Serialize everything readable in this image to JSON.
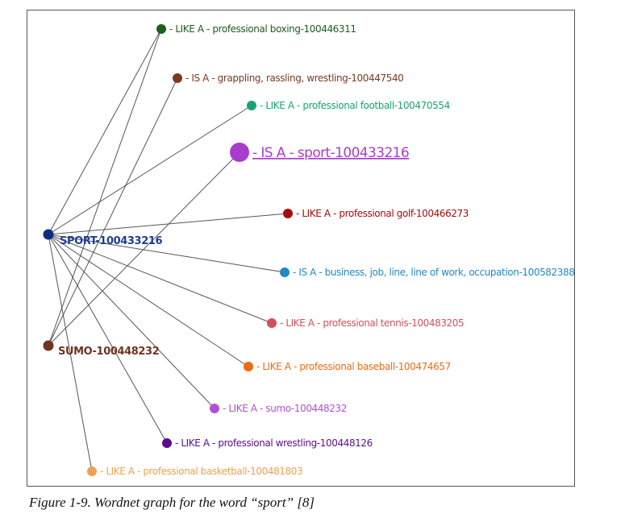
{
  "figure": {
    "caption": "Figure 1-9. Wordnet graph for the word “sport” [8]"
  },
  "graph": {
    "hubs": [
      {
        "id": "sport",
        "label": "SPORT-100433216",
        "color": "#0b2f7d",
        "label_color": "#1c3f8f"
      },
      {
        "id": "sumo",
        "label": "SUMO-100448232",
        "color": "#6e3520",
        "label_color": "#6e3520"
      }
    ],
    "nodes": [
      {
        "id": "boxing",
        "label": "- LIKE A - professional boxing-100446311",
        "color": "#1e5e1e",
        "highlight": false
      },
      {
        "id": "wrestling",
        "label": "- IS A - grappling, rassling, wrestling-100447540",
        "color": "#7a3b22",
        "highlight": false
      },
      {
        "id": "football",
        "label": "- LIKE A - professional football-100470554",
        "color": "#17a376",
        "highlight": false
      },
      {
        "id": "sport_main",
        "label": "- IS A - sport-100433216",
        "color": "#aa3ccd",
        "highlight": true
      },
      {
        "id": "golf",
        "label": "- LIKE A - professional golf-100466273",
        "color": "#a50d0d",
        "highlight": false
      },
      {
        "id": "business",
        "label": "- IS A - business, job, line, line of work, occupation-100582388",
        "color": "#2288c8",
        "highlight": false
      },
      {
        "id": "tennis",
        "label": "- LIKE A - professional tennis-100483205",
        "color": "#d4505a",
        "highlight": false
      },
      {
        "id": "baseball",
        "label": "- LIKE A - professional baseball-100474657",
        "color": "#ef6a10",
        "highlight": false
      },
      {
        "id": "sumo_like",
        "label": "- LIKE A - sumo-100448232",
        "color": "#b24fd0",
        "highlight": false
      },
      {
        "id": "pro_wrestling",
        "label": "- LIKE A - professional wrestling-100448126",
        "color": "#5a0d8f",
        "highlight": false
      },
      {
        "id": "basketball",
        "label": "- LIKE A - professional basketball-100481803",
        "color": "#f0a050",
        "highlight": false
      }
    ],
    "edges": [
      [
        "sport",
        "boxing"
      ],
      [
        "sport",
        "football"
      ],
      [
        "sport",
        "golf"
      ],
      [
        "sport",
        "business"
      ],
      [
        "sport",
        "tennis"
      ],
      [
        "sport",
        "baseball"
      ],
      [
        "sport",
        "sumo_like"
      ],
      [
        "sport",
        "pro_wrestling"
      ],
      [
        "sport",
        "basketball"
      ],
      [
        "sumo",
        "wrestling"
      ],
      [
        "sumo",
        "sport_main"
      ],
      [
        "sumo",
        "boxing"
      ]
    ]
  }
}
